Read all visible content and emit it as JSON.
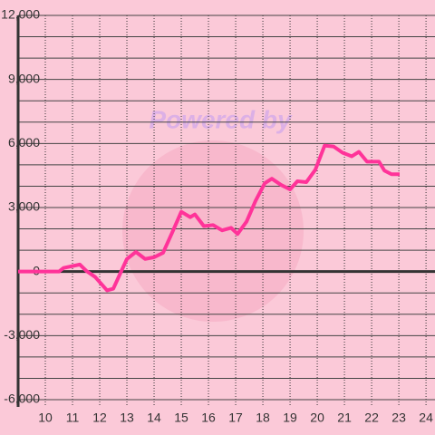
{
  "chart_data": {
    "type": "line",
    "watermark": "Powered by",
    "x": [
      9,
      10.5,
      10.67,
      11.27,
      11.5,
      11.83,
      12.27,
      12.5,
      13,
      13.33,
      13.67,
      14,
      14.33,
      14.67,
      15,
      15.33,
      15.5,
      15.83,
      16.17,
      16.5,
      16.83,
      17.07,
      17.4,
      17.73,
      18.07,
      18.33,
      18.67,
      19,
      19.27,
      19.6,
      19.93,
      20.27,
      20.6,
      20.93,
      21.27,
      21.53,
      21.83,
      22.27,
      22.47,
      22.73,
      23.03
    ],
    "series": [
      {
        "color": "#ff3399",
        "values": [
          0,
          0,
          170,
          330,
          40,
          -250,
          -880,
          -800,
          590,
          920,
          590,
          670,
          880,
          1840,
          2800,
          2550,
          2680,
          2130,
          2180,
          1930,
          2050,
          1760,
          2340,
          3310,
          4140,
          4350,
          4060,
          3850,
          4230,
          4190,
          4770,
          5900,
          5860,
          5570,
          5400,
          5610,
          5150,
          5150,
          4730,
          4560,
          4560
        ]
      }
    ],
    "xlim": [
      9,
      24.33
    ],
    "xticks": [
      10,
      11,
      12,
      13,
      14,
      15,
      16,
      17,
      18,
      19,
      20,
      21,
      22,
      23,
      24
    ],
    "ylim": [
      -6000,
      12000
    ],
    "yticks": [
      {
        "value": -6000,
        "label": "-6,000"
      },
      {
        "value": -3000,
        "label": "-3,000"
      },
      0,
      {
        "value": 3000,
        "label": "3,000"
      },
      {
        "value": 6000,
        "label": "6,000"
      },
      {
        "value": 9000,
        "label": "9,000"
      },
      {
        "value": 12000,
        "label": "12,000"
      }
    ],
    "y_minor_ticks": [
      -5000,
      -4000,
      -2000,
      -1000,
      1000,
      2000,
      4000,
      5000,
      7000,
      8000,
      10000,
      11000
    ],
    "grid": true
  }
}
